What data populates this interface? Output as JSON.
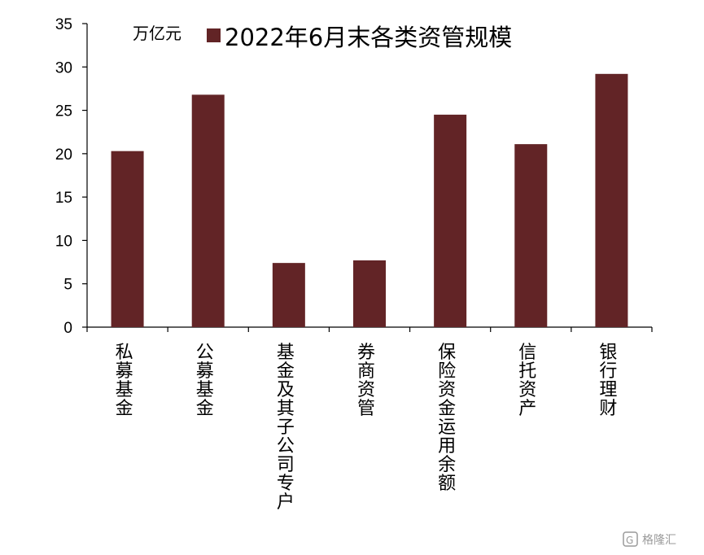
{
  "chart_data": {
    "type": "bar",
    "unit_label": "万亿元",
    "series": [
      {
        "name": "2022年6月末各类资管规模",
        "color": "#622426",
        "values": [
          20.3,
          26.8,
          7.4,
          7.7,
          24.5,
          21.1,
          29.2
        ]
      }
    ],
    "categories": [
      "私募基金",
      "公募基金",
      "基金及其子公司专户",
      "券商资管",
      "保险资金运用余额",
      "信托资产",
      "银行理财"
    ],
    "ylim": [
      0,
      35
    ],
    "yticks": [
      0,
      5,
      10,
      15,
      20,
      25,
      30,
      35
    ],
    "grid": false,
    "legend_position": "top"
  },
  "watermark": "格隆汇"
}
